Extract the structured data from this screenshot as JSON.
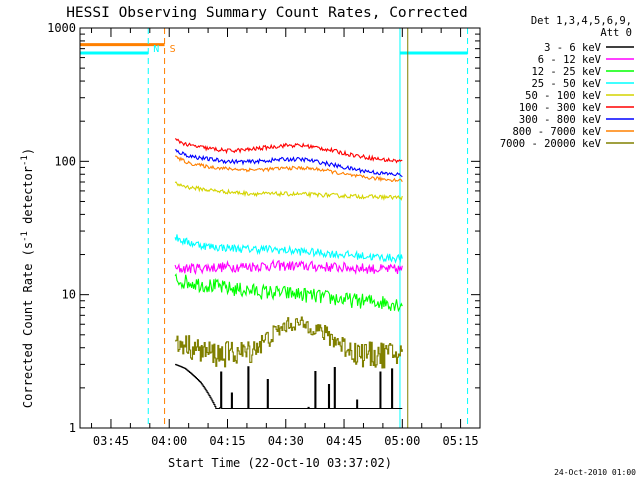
{
  "chart_data": {
    "type": "line",
    "title": "HESSI Observing Summary Count Rates, Corrected",
    "xlabel": "Start Time (22-Oct-10 03:37:02)",
    "ylabel": "Corrected Count Rate (s^-1 detector^-1)",
    "ylabel_parts": {
      "a": "Corrected Count Rate (s",
      "e1": "-1",
      "b": " detector",
      "e2": "-1",
      "c": ")"
    },
    "y_scale": "log",
    "ylim": [
      1,
      1000
    ],
    "x_tick_labels": [
      "03:45",
      "04:00",
      "04:15",
      "04:30",
      "04:45",
      "05:00",
      "05:15"
    ],
    "x_ticks_min": [
      225,
      240,
      255,
      270,
      285,
      300,
      315
    ],
    "xlim_min": [
      217.03,
      320
    ],
    "y_tick_labels": [
      {
        "value": 1,
        "label": "1"
      },
      {
        "value": 10,
        "label": "10"
      },
      {
        "value": 100,
        "label": "100"
      },
      {
        "value": 1000,
        "label": "1000"
      }
    ],
    "legend_header": [
      "Det 1,3,4,5,6,9,",
      "Att 0"
    ],
    "legend_placement": "right",
    "series": [
      {
        "name": "3 - 6 keV",
        "color": "#000000",
        "x": [
          241.5,
          244,
          246,
          248,
          252,
          260,
          266,
          270,
          272,
          274,
          276,
          278,
          280,
          288,
          296,
          300
        ],
        "y": [
          3.0,
          2.8,
          2.5,
          2.2,
          1.4,
          1.4,
          1.4,
          1.4,
          1.4,
          1.4,
          1.4,
          1.4,
          1.4,
          1.4,
          1.4,
          1.4
        ]
      },
      {
        "name": "6 - 12 keV",
        "color": "#ff00ff",
        "x": [
          241.5,
          245,
          250,
          255,
          260,
          265,
          270,
          275,
          280,
          285,
          290,
          295,
          300
        ],
        "y": [
          15.5,
          15.8,
          16.0,
          16.2,
          16.3,
          16.5,
          16.5,
          16.4,
          16.2,
          16.0,
          15.8,
          15.5,
          15.5
        ]
      },
      {
        "name": "12 - 25 keV",
        "color": "#00ff00",
        "x": [
          241.5,
          245,
          250,
          255,
          260,
          265,
          270,
          275,
          280,
          285,
          290,
          295,
          300
        ],
        "y": [
          13.0,
          12.5,
          11.8,
          11.2,
          10.8,
          10.5,
          10.3,
          10.0,
          9.6,
          9.2,
          9.0,
          8.8,
          8.5
        ]
      },
      {
        "name": "25 - 50 keV",
        "color": "#00ffff",
        "x": [
          241.5,
          244,
          247,
          250,
          255,
          260,
          265,
          270,
          275,
          280,
          285,
          290,
          295,
          300
        ],
        "y": [
          27,
          25,
          24,
          23,
          22.5,
          22,
          22,
          21.5,
          21,
          20.5,
          20,
          19.5,
          19,
          18.8
        ]
      },
      {
        "name": "50 - 100 keV",
        "color": "#d4d400",
        "x": [
          241.5,
          245,
          250,
          255,
          260,
          265,
          270,
          275,
          280,
          285,
          290,
          295,
          300
        ],
        "y": [
          68,
          64,
          61,
          59,
          57.5,
          57,
          57,
          56.5,
          56,
          55,
          54.5,
          54,
          53.5
        ]
      },
      {
        "name": "100 - 300 keV",
        "color": "#ff0000",
        "x": [
          241.5,
          245,
          250,
          255,
          260,
          265,
          270,
          275,
          280,
          285,
          290,
          295,
          300
        ],
        "y": [
          145,
          132,
          125,
          120,
          122,
          127,
          132,
          131,
          124,
          115,
          108,
          103,
          100
        ]
      },
      {
        "name": "300 - 800 keV",
        "color": "#0000ff",
        "x": [
          241.5,
          245,
          250,
          255,
          260,
          265,
          270,
          275,
          280,
          285,
          290,
          295,
          300
        ],
        "y": [
          120,
          110,
          104,
          100,
          99,
          101,
          104,
          103,
          97,
          90,
          85,
          81,
          79
        ]
      },
      {
        "name": "800 - 7000 keV",
        "color": "#ff8000",
        "x": [
          241.5,
          245,
          250,
          255,
          260,
          265,
          270,
          275,
          280,
          285,
          290,
          295,
          300
        ],
        "y": [
          108,
          97,
          91,
          88,
          86.5,
          87,
          89,
          89,
          86,
          80,
          76,
          73.5,
          72
        ]
      },
      {
        "name": "7000 - 20000 keV",
        "color": "#808000",
        "x": [
          241.5,
          244,
          247,
          250,
          253,
          256,
          260,
          264,
          268,
          270,
          272,
          276,
          280,
          284,
          288,
          292,
          296,
          300
        ],
        "y": [
          4.2,
          4.3,
          3.9,
          3.7,
          3.6,
          3.7,
          3.7,
          4.4,
          5.4,
          5.9,
          6.1,
          5.9,
          5.1,
          4.3,
          3.7,
          3.6,
          3.6,
          3.6
        ]
      }
    ],
    "events": [
      {
        "label": "N",
        "color": "#00ffff",
        "time_min": 234.6
      },
      {
        "label": "S",
        "color": "#ff8000",
        "time_min": 238.8
      }
    ],
    "orbit_markers": [
      {
        "label": "",
        "color": "#00ffff",
        "style": "solid",
        "time_min": 217.03
      },
      {
        "label": "",
        "color": "#00ffff",
        "style": "dashed",
        "time_min": 234.6
      },
      {
        "label": "",
        "color": "#ff8000",
        "style": "dashed",
        "time_min": 238.8
      },
      {
        "label": "",
        "color": "#00ffff",
        "style": "solid",
        "time_min": 299.4
      },
      {
        "label": "",
        "color": "#808000",
        "style": "solid",
        "time_min": 301.4
      },
      {
        "label": "",
        "color": "#00ffff",
        "style": "dashed",
        "time_min": 316.8
      }
    ],
    "night_segments": [
      {
        "x_start": 217.03,
        "x_end": 234.6,
        "y": 650
      },
      {
        "x_start": 299.4,
        "x_end": 316.8,
        "y": 650
      }
    ],
    "saa_segment": {
      "x_start": 217.03,
      "x_end": 238.8,
      "y": 750
    },
    "grid": false
  },
  "footer": {
    "timestamp": "24-Oct-2010 01:00"
  }
}
